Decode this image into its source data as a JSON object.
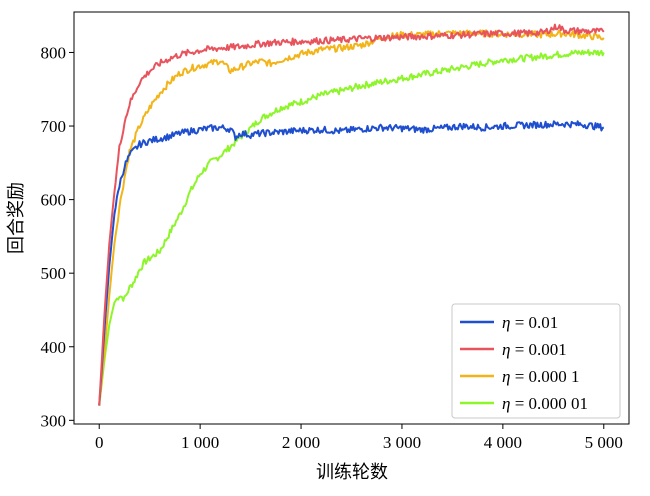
{
  "chart_data": {
    "type": "line",
    "xlabel": "训练轮数",
    "ylabel": "回合奖励",
    "xlim": [
      -250,
      5250
    ],
    "ylim": [
      295,
      855
    ],
    "xticks": [
      0,
      1000,
      2000,
      3000,
      4000,
      5000
    ],
    "xtick_labels": [
      "0",
      "1 000",
      "2 000",
      "3 000",
      "4 000",
      "5 000"
    ],
    "yticks": [
      300,
      400,
      500,
      600,
      700,
      800
    ],
    "ytick_labels": [
      "300",
      "400",
      "500",
      "600",
      "700",
      "800"
    ],
    "grid": false,
    "legend_position": "lower-right",
    "series": [
      {
        "name": "η = 0.01",
        "symbol": "η",
        "value_label": "= 0.01",
        "color": "#1f4fcf",
        "x": [
          0,
          50,
          100,
          150,
          200,
          250,
          300,
          350,
          400,
          500,
          600,
          700,
          800,
          900,
          1000,
          1100,
          1200,
          1300,
          1350,
          1400,
          1500,
          1600,
          1800,
          2000,
          2200,
          2400,
          2600,
          2800,
          3000,
          3200,
          3400,
          3600,
          3800,
          4000,
          4200,
          4400,
          4600,
          4800,
          5000
        ],
        "y": [
          320,
          420,
          510,
          580,
          620,
          645,
          660,
          668,
          675,
          680,
          683,
          686,
          690,
          693,
          695,
          697,
          698,
          696,
          685,
          690,
          688,
          690,
          692,
          694,
          695,
          693,
          696,
          698,
          697,
          695,
          697,
          700,
          698,
          700,
          701,
          702,
          703,
          702,
          698
        ]
      },
      {
        "name": "η = 0.001",
        "symbol": "η",
        "value_label": "= 0.001",
        "color": "#e8545d",
        "x": [
          0,
          50,
          100,
          150,
          200,
          250,
          300,
          400,
          500,
          600,
          700,
          800,
          900,
          1000,
          1200,
          1400,
          1600,
          1800,
          2000,
          2200,
          2400,
          2600,
          2800,
          3000,
          3200,
          3400,
          3600,
          3800,
          4000,
          4200,
          4400,
          4550,
          4600,
          4800,
          5000
        ],
        "y": [
          320,
          440,
          540,
          610,
          670,
          705,
          730,
          760,
          775,
          785,
          792,
          797,
          800,
          803,
          806,
          808,
          812,
          814,
          815,
          816,
          817,
          819,
          820,
          821,
          822,
          823,
          824,
          825,
          826,
          826,
          827,
          836,
          830,
          829,
          828
        ]
      },
      {
        "name": "η = 0.000 1",
        "symbol": "η",
        "value_label": "= 0.000 1",
        "color": "#f2b418",
        "x": [
          0,
          50,
          100,
          150,
          200,
          250,
          300,
          400,
          500,
          600,
          700,
          800,
          900,
          1000,
          1100,
          1200,
          1300,
          1400,
          1500,
          1600,
          1700,
          1800,
          2000,
          2200,
          2400,
          2600,
          2800,
          3000,
          3200,
          3400,
          3600,
          3800,
          4000,
          4200,
          4400,
          4600,
          4800,
          5000
        ],
        "y": [
          320,
          390,
          470,
          540,
          590,
          630,
          665,
          700,
          725,
          745,
          760,
          772,
          778,
          782,
          785,
          789,
          775,
          780,
          785,
          788,
          785,
          790,
          798,
          804,
          806,
          810,
          820,
          824,
          824,
          826,
          826,
          826,
          825,
          825,
          824,
          826,
          823,
          820
        ]
      },
      {
        "name": "η = 0.000 01",
        "symbol": "η",
        "value_label": "= 0.000 01",
        "color": "#8ef52b",
        "x": [
          0,
          50,
          100,
          150,
          200,
          250,
          300,
          350,
          400,
          450,
          500,
          600,
          700,
          800,
          900,
          1000,
          1100,
          1200,
          1300,
          1400,
          1500,
          1600,
          1800,
          2000,
          2200,
          2400,
          2600,
          2800,
          3000,
          3200,
          3400,
          3600,
          3800,
          4000,
          4200,
          4400,
          4600,
          4800,
          5000
        ],
        "y": [
          320,
          380,
          430,
          460,
          470,
          465,
          480,
          490,
          505,
          515,
          520,
          530,
          555,
          580,
          610,
          635,
          650,
          660,
          672,
          685,
          697,
          710,
          725,
          733,
          742,
          748,
          755,
          760,
          765,
          770,
          775,
          780,
          785,
          790,
          792,
          795,
          798,
          800,
          800
        ]
      }
    ]
  }
}
